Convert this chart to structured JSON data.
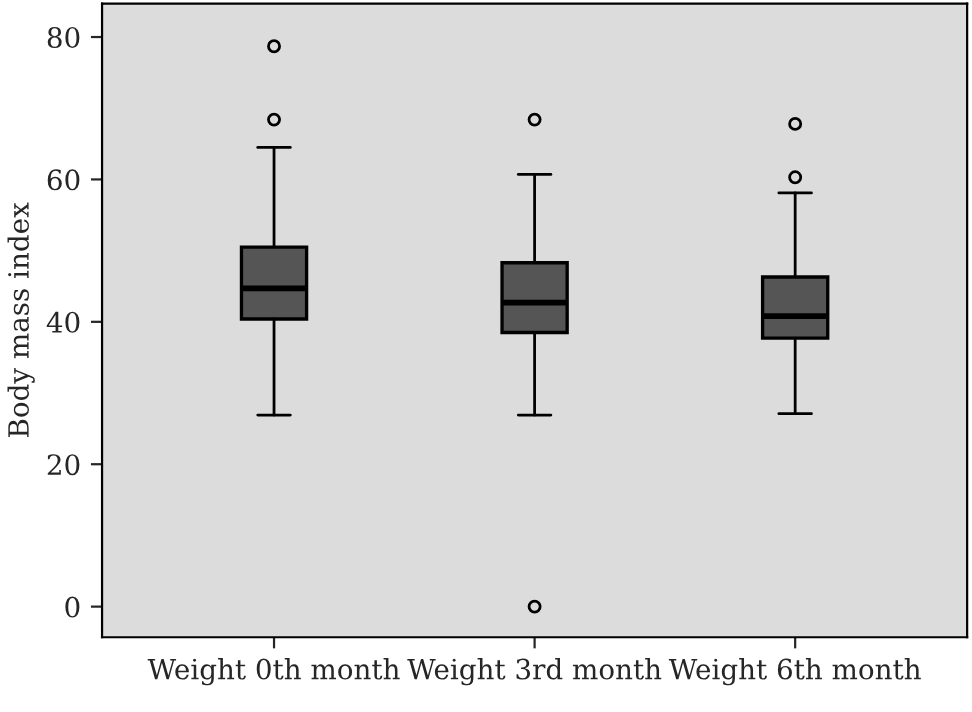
{
  "chart_data": {
    "type": "box",
    "ylabel": "Body mass index",
    "categories": [
      "Weight 0th month",
      "Weight 3rd month",
      "Weight 6th month"
    ],
    "boxes": [
      {
        "low": 26.9,
        "q1": 40.4,
        "median": 44.7,
        "q3": 50.5,
        "high": 64.5,
        "outliers": [
          68.4,
          78.7
        ]
      },
      {
        "low": 26.9,
        "q1": 38.5,
        "median": 42.7,
        "q3": 48.3,
        "high": 60.7,
        "outliers": [
          0,
          68.4
        ]
      },
      {
        "low": 27.1,
        "q1": 37.7,
        "median": 40.8,
        "q3": 46.3,
        "high": 58.1,
        "outliers": [
          60.3,
          67.8
        ]
      }
    ],
    "color": "#555555",
    "ylim": [
      -4.3,
      84.7
    ],
    "yticks": [
      0,
      20,
      40,
      60,
      80
    ],
    "grid": false
  }
}
